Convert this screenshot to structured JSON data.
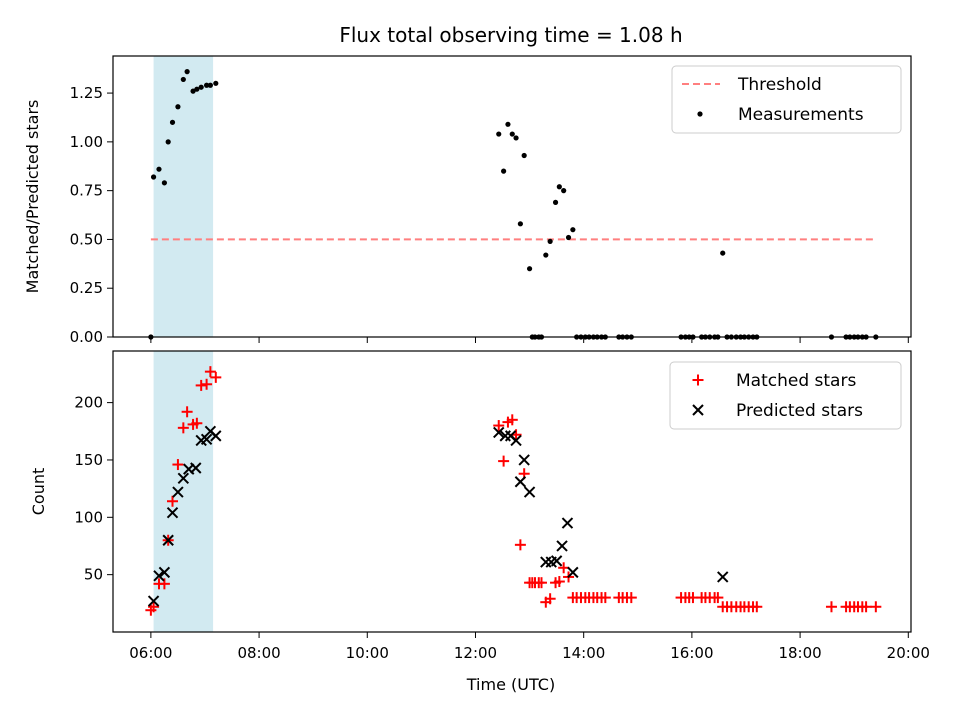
{
  "chart_data": {
    "title": "Flux total observing time = 1.08 h",
    "xlabel": "Time (UTC)",
    "x_unit": "hours",
    "xlim": [
      5.3,
      20.05
    ],
    "xticks": [
      6,
      8,
      10,
      12,
      14,
      16,
      18,
      20
    ],
    "xtick_labels": [
      "06:00",
      "08:00",
      "10:00",
      "12:00",
      "14:00",
      "16:00",
      "18:00",
      "20:00"
    ],
    "highlight_span": {
      "start": 6.05,
      "end": 7.15,
      "color": "#add8e6"
    },
    "panels": [
      {
        "type": "scatter",
        "ylabel": "Matched/Predicted stars",
        "ylim": [
          0,
          1.44
        ],
        "yticks": [
          0,
          0.25,
          0.5,
          0.75,
          1.0,
          1.25
        ],
        "ytick_labels": [
          "0.00",
          "0.25",
          "0.50",
          "0.75",
          "1.00",
          "1.25"
        ],
        "legend": {
          "position": "top-right"
        },
        "threshold": {
          "name": "Threshold",
          "value": 0.5,
          "x_range": [
            6.0,
            19.4
          ],
          "color": "#ff7f7f",
          "style": "dashed"
        },
        "series": [
          {
            "name": "Measurements",
            "marker": "dot",
            "color": "#000000",
            "points": [
              [
                6.0,
                0.0
              ],
              [
                6.05,
                0.82
              ],
              [
                6.15,
                0.86
              ],
              [
                6.25,
                0.79
              ],
              [
                6.32,
                1.0
              ],
              [
                6.4,
                1.1
              ],
              [
                6.5,
                1.18
              ],
              [
                6.6,
                1.32
              ],
              [
                6.67,
                1.36
              ],
              [
                6.78,
                1.26
              ],
              [
                6.85,
                1.27
              ],
              [
                6.93,
                1.28
              ],
              [
                7.03,
                1.29
              ],
              [
                7.1,
                1.29
              ],
              [
                7.2,
                1.3
              ],
              [
                12.43,
                1.04
              ],
              [
                12.52,
                0.85
              ],
              [
                12.6,
                1.09
              ],
              [
                12.68,
                1.04
              ],
              [
                12.75,
                1.02
              ],
              [
                12.83,
                0.58
              ],
              [
                12.9,
                0.93
              ],
              [
                13.0,
                0.35
              ],
              [
                13.05,
                0.0
              ],
              [
                13.1,
                0.0
              ],
              [
                13.17,
                0.0
              ],
              [
                13.22,
                0.0
              ],
              [
                13.3,
                0.42
              ],
              [
                13.38,
                0.49
              ],
              [
                13.48,
                0.69
              ],
              [
                13.55,
                0.77
              ],
              [
                13.63,
                0.75
              ],
              [
                13.72,
                0.51
              ],
              [
                13.8,
                0.55
              ],
              [
                13.87,
                0.0
              ],
              [
                13.95,
                0.0
              ],
              [
                14.03,
                0.0
              ],
              [
                14.1,
                0.0
              ],
              [
                14.18,
                0.0
              ],
              [
                14.25,
                0.0
              ],
              [
                14.33,
                0.0
              ],
              [
                14.4,
                0.0
              ],
              [
                14.65,
                0.0
              ],
              [
                14.72,
                0.0
              ],
              [
                14.8,
                0.0
              ],
              [
                14.88,
                0.0
              ],
              [
                15.8,
                0.0
              ],
              [
                15.88,
                0.0
              ],
              [
                15.95,
                0.0
              ],
              [
                16.02,
                0.0
              ],
              [
                16.18,
                0.0
              ],
              [
                16.25,
                0.0
              ],
              [
                16.33,
                0.0
              ],
              [
                16.42,
                0.0
              ],
              [
                16.48,
                0.0
              ],
              [
                16.57,
                0.43
              ],
              [
                16.65,
                0.0
              ],
              [
                16.73,
                0.0
              ],
              [
                16.82,
                0.0
              ],
              [
                16.9,
                0.0
              ],
              [
                16.97,
                0.0
              ],
              [
                17.05,
                0.0
              ],
              [
                17.13,
                0.0
              ],
              [
                17.2,
                0.0
              ],
              [
                18.58,
                0.0
              ],
              [
                18.85,
                0.0
              ],
              [
                18.92,
                0.0
              ],
              [
                19.0,
                0.0
              ],
              [
                19.07,
                0.0
              ],
              [
                19.15,
                0.0
              ],
              [
                19.22,
                0.0
              ],
              [
                19.4,
                0.0
              ]
            ]
          }
        ]
      },
      {
        "type": "scatter",
        "ylabel": "Count",
        "ylim": [
          0,
          245
        ],
        "yticks": [
          50,
          100,
          150,
          200
        ],
        "ytick_labels": [
          "50",
          "100",
          "150",
          "200"
        ],
        "legend": {
          "position": "top-right"
        },
        "series": [
          {
            "name": "Matched stars",
            "marker": "plus",
            "color": "#ff0000",
            "points": [
              [
                6.0,
                19
              ],
              [
                6.05,
                22
              ],
              [
                6.15,
                42
              ],
              [
                6.25,
                42
              ],
              [
                6.32,
                80
              ],
              [
                6.4,
                114
              ],
              [
                6.5,
                146
              ],
              [
                6.6,
                178
              ],
              [
                6.67,
                192
              ],
              [
                6.78,
                181
              ],
              [
                6.85,
                182
              ],
              [
                6.93,
                215
              ],
              [
                7.03,
                216
              ],
              [
                7.1,
                227
              ],
              [
                7.2,
                222
              ],
              [
                12.43,
                180
              ],
              [
                12.52,
                149
              ],
              [
                12.6,
                183
              ],
              [
                12.68,
                185
              ],
              [
                12.75,
                172
              ],
              [
                12.83,
                76
              ],
              [
                12.9,
                138
              ],
              [
                13.0,
                43
              ],
              [
                13.05,
                43
              ],
              [
                13.1,
                43
              ],
              [
                13.17,
                43
              ],
              [
                13.22,
                43
              ],
              [
                13.3,
                26
              ],
              [
                13.38,
                29
              ],
              [
                13.48,
                43
              ],
              [
                13.55,
                44
              ],
              [
                13.63,
                56
              ],
              [
                13.72,
                48
              ],
              [
                13.8,
                30
              ],
              [
                13.87,
                30
              ],
              [
                13.95,
                30
              ],
              [
                14.03,
                30
              ],
              [
                14.1,
                30
              ],
              [
                14.18,
                30
              ],
              [
                14.25,
                30
              ],
              [
                14.33,
                30
              ],
              [
                14.4,
                30
              ],
              [
                14.65,
                30
              ],
              [
                14.72,
                30
              ],
              [
                14.8,
                30
              ],
              [
                14.88,
                30
              ],
              [
                15.8,
                30
              ],
              [
                15.88,
                30
              ],
              [
                15.95,
                30
              ],
              [
                16.02,
                30
              ],
              [
                16.18,
                30
              ],
              [
                16.25,
                30
              ],
              [
                16.33,
                30
              ],
              [
                16.42,
                30
              ],
              [
                16.48,
                30
              ],
              [
                16.57,
                22
              ],
              [
                16.65,
                22
              ],
              [
                16.73,
                22
              ],
              [
                16.82,
                22
              ],
              [
                16.9,
                22
              ],
              [
                16.97,
                22
              ],
              [
                17.05,
                22
              ],
              [
                17.13,
                22
              ],
              [
                17.2,
                22
              ],
              [
                18.58,
                22
              ],
              [
                18.85,
                22
              ],
              [
                18.92,
                22
              ],
              [
                19.0,
                22
              ],
              [
                19.07,
                22
              ],
              [
                19.15,
                22
              ],
              [
                19.22,
                22
              ],
              [
                19.4,
                22
              ]
            ]
          },
          {
            "name": "Predicted stars",
            "marker": "x",
            "color": "#000000",
            "points": [
              [
                6.05,
                27
              ],
              [
                6.15,
                49
              ],
              [
                6.25,
                52
              ],
              [
                6.32,
                80
              ],
              [
                6.4,
                104
              ],
              [
                6.5,
                122
              ],
              [
                6.6,
                134
              ],
              [
                6.7,
                142
              ],
              [
                6.83,
                143
              ],
              [
                6.93,
                167
              ],
              [
                7.03,
                168
              ],
              [
                7.1,
                175
              ],
              [
                7.2,
                171
              ],
              [
                12.43,
                174
              ],
              [
                12.55,
                171
              ],
              [
                12.65,
                171
              ],
              [
                12.75,
                167
              ],
              [
                12.83,
                131
              ],
              [
                12.9,
                150
              ],
              [
                13.0,
                122
              ],
              [
                13.3,
                61
              ],
              [
                13.4,
                61
              ],
              [
                13.5,
                62
              ],
              [
                13.6,
                75
              ],
              [
                13.7,
                95
              ],
              [
                13.8,
                52
              ],
              [
                16.57,
                48
              ]
            ]
          }
        ]
      }
    ]
  }
}
